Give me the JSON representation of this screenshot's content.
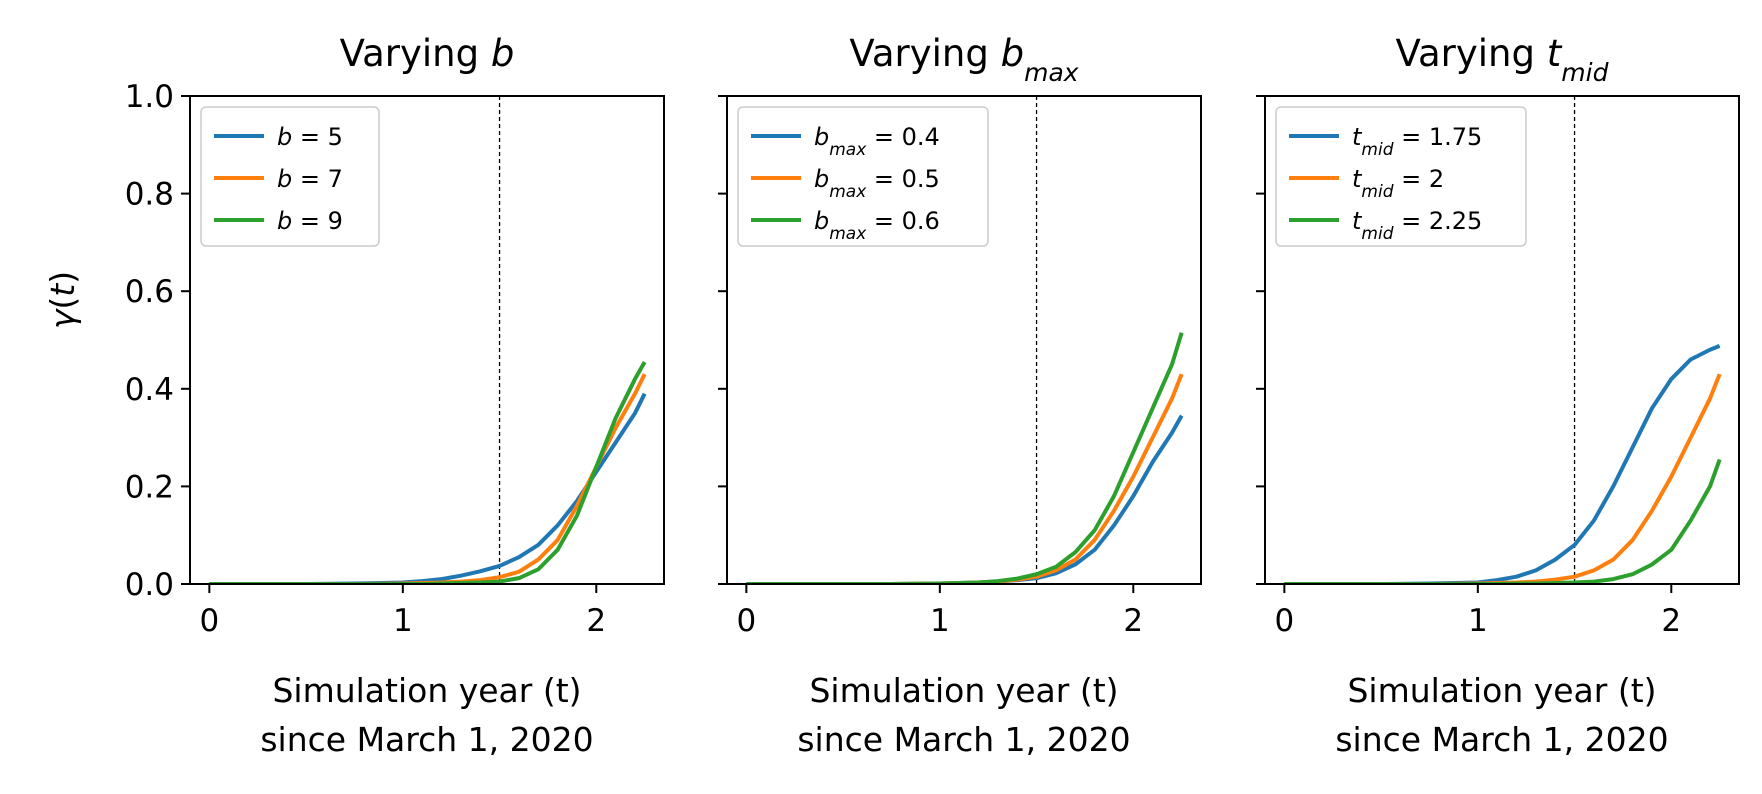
{
  "figure": {
    "ylabel": "γ(t)",
    "xlabel_line1": "Simulation year (t)",
    "xlabel_line2": "since March 1, 2020"
  },
  "colors": {
    "series": [
      "#1f77b4",
      "#ff7f0e",
      "#2ca02c"
    ]
  },
  "chart_data": [
    {
      "type": "line",
      "title": "Varying b",
      "title_main": "Varying ",
      "title_var": "b",
      "title_sub": "",
      "xlabel": "Simulation year (t) since March 1, 2020",
      "ylabel": "γ(t)",
      "xlim": [
        -0.1,
        2.35
      ],
      "ylim": [
        0,
        1
      ],
      "xticks": [
        0,
        1,
        2
      ],
      "yticks": [
        0.0,
        0.2,
        0.4,
        0.6,
        0.8,
        1.0
      ],
      "vline": 1.5,
      "legend_position": "upper-left",
      "grid": false,
      "x": [
        0,
        0.25,
        0.5,
        0.75,
        1.0,
        1.1,
        1.2,
        1.3,
        1.4,
        1.5,
        1.6,
        1.7,
        1.8,
        1.9,
        2.0,
        2.1,
        2.2,
        2.25
      ],
      "series": [
        {
          "name": "b = 5",
          "name_var": "b",
          "name_sub": "",
          "name_val": " = 5",
          "values": [
            0.0,
            0.0,
            0.0,
            0.001,
            0.003,
            0.006,
            0.01,
            0.017,
            0.026,
            0.037,
            0.055,
            0.08,
            0.12,
            0.17,
            0.23,
            0.29,
            0.35,
            0.39
          ]
        },
        {
          "name": "b = 7",
          "name_var": "b",
          "name_sub": "",
          "name_val": " = 7",
          "values": [
            0.0,
            0.0,
            0.0,
            0.0,
            0.001,
            0.002,
            0.003,
            0.005,
            0.008,
            0.014,
            0.025,
            0.05,
            0.09,
            0.16,
            0.24,
            0.32,
            0.39,
            0.43
          ]
        },
        {
          "name": "b = 9",
          "name_var": "b",
          "name_sub": "",
          "name_val": " = 9",
          "values": [
            0.0,
            0.0,
            0.0,
            0.0,
            0.0,
            0.0,
            0.001,
            0.002,
            0.003,
            0.005,
            0.012,
            0.03,
            0.07,
            0.14,
            0.24,
            0.34,
            0.42,
            0.455
          ]
        }
      ]
    },
    {
      "type": "line",
      "title": "Varying b_max",
      "title_main": "Varying ",
      "title_var": "b",
      "title_sub": "max",
      "xlabel": "Simulation year (t) since March 1, 2020",
      "ylabel": "",
      "xlim": [
        -0.1,
        2.35
      ],
      "ylim": [
        0,
        1
      ],
      "xticks": [
        0,
        1,
        2
      ],
      "yticks": [
        0.0,
        0.2,
        0.4,
        0.6,
        0.8,
        1.0
      ],
      "vline": 1.5,
      "legend_position": "upper-left",
      "grid": false,
      "x": [
        0,
        0.25,
        0.5,
        0.75,
        1.0,
        1.1,
        1.2,
        1.3,
        1.4,
        1.5,
        1.6,
        1.7,
        1.8,
        1.9,
        2.0,
        2.1,
        2.2,
        2.25
      ],
      "series": [
        {
          "name": "b_max = 0.4",
          "name_var": "b",
          "name_sub": "max",
          "name_val": " = 0.4",
          "values": [
            0.0,
            0.0,
            0.0,
            0.0,
            0.001,
            0.002,
            0.003,
            0.005,
            0.008,
            0.012,
            0.022,
            0.04,
            0.07,
            0.12,
            0.18,
            0.25,
            0.31,
            0.345
          ]
        },
        {
          "name": "b_max = 0.5",
          "name_var": "b",
          "name_sub": "max",
          "name_val": " = 0.5",
          "values": [
            0.0,
            0.0,
            0.0,
            0.0,
            0.001,
            0.002,
            0.003,
            0.005,
            0.009,
            0.015,
            0.028,
            0.05,
            0.09,
            0.15,
            0.22,
            0.3,
            0.38,
            0.43
          ]
        },
        {
          "name": "b_max = 0.6",
          "name_var": "b",
          "name_sub": "max",
          "name_val": " = 0.6",
          "values": [
            0.0,
            0.0,
            0.0,
            0.0,
            0.001,
            0.002,
            0.003,
            0.006,
            0.011,
            0.02,
            0.035,
            0.065,
            0.11,
            0.18,
            0.27,
            0.36,
            0.45,
            0.515
          ]
        }
      ]
    },
    {
      "type": "line",
      "title": "Varying t_mid",
      "title_main": "Varying ",
      "title_var": "t",
      "title_sub": "mid",
      "xlabel": "Simulation year (t) since March 1, 2020",
      "ylabel": "",
      "xlim": [
        -0.1,
        2.35
      ],
      "ylim": [
        0,
        1
      ],
      "xticks": [
        0,
        1,
        2
      ],
      "yticks": [
        0.0,
        0.2,
        0.4,
        0.6,
        0.8,
        1.0
      ],
      "vline": 1.5,
      "legend_position": "upper-left",
      "grid": false,
      "x": [
        0,
        0.25,
        0.5,
        0.75,
        1.0,
        1.1,
        1.2,
        1.3,
        1.4,
        1.5,
        1.6,
        1.7,
        1.8,
        1.9,
        2.0,
        2.1,
        2.2,
        2.25
      ],
      "series": [
        {
          "name": "t_mid = 1.75",
          "name_var": "t",
          "name_sub": "mid",
          "name_val": " = 1.75",
          "values": [
            0.0,
            0.0,
            0.0,
            0.001,
            0.003,
            0.008,
            0.015,
            0.028,
            0.05,
            0.08,
            0.13,
            0.2,
            0.28,
            0.36,
            0.42,
            0.46,
            0.48,
            0.488
          ]
        },
        {
          "name": "t_mid = 2",
          "name_var": "t",
          "name_sub": "mid",
          "name_val": " = 2",
          "values": [
            0.0,
            0.0,
            0.0,
            0.0,
            0.001,
            0.002,
            0.003,
            0.005,
            0.009,
            0.015,
            0.028,
            0.05,
            0.09,
            0.15,
            0.22,
            0.3,
            0.38,
            0.43
          ]
        },
        {
          "name": "t_mid = 2.25",
          "name_var": "t",
          "name_sub": "mid",
          "name_val": " = 2.25",
          "values": [
            0.0,
            0.0,
            0.0,
            0.0,
            0.0,
            0.0,
            0.001,
            0.001,
            0.002,
            0.003,
            0.005,
            0.01,
            0.02,
            0.04,
            0.07,
            0.13,
            0.2,
            0.255
          ]
        }
      ]
    }
  ]
}
